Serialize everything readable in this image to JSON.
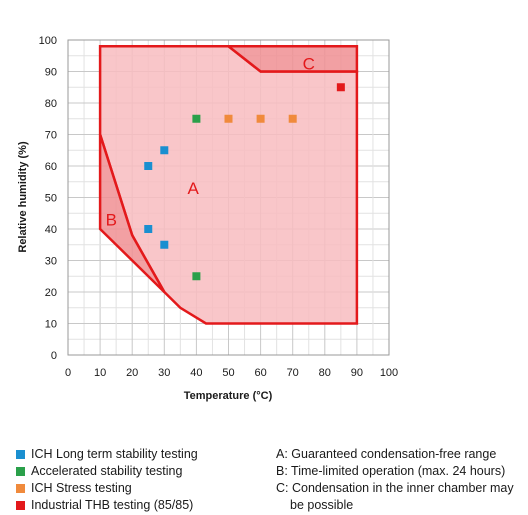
{
  "chart_data": {
    "type": "scatter",
    "xlabel": "Temperature (°C)",
    "ylabel": "Relative humidity (%)",
    "xlim": [
      0,
      100
    ],
    "ylim": [
      0,
      100
    ],
    "x_ticks": [
      0,
      10,
      20,
      30,
      40,
      50,
      60,
      70,
      80,
      90,
      100
    ],
    "y_ticks": [
      0,
      10,
      20,
      30,
      40,
      50,
      60,
      70,
      80,
      90,
      100
    ],
    "grid": true,
    "regions": [
      {
        "label": "A",
        "polygon": [
          [
            10,
            98
          ],
          [
            50,
            98
          ],
          [
            60,
            90
          ],
          [
            90,
            90
          ],
          [
            90,
            10
          ],
          [
            43,
            10
          ],
          [
            35,
            15
          ],
          [
            30,
            20
          ],
          [
            20,
            38
          ],
          [
            10,
            70
          ]
        ]
      },
      {
        "label": "B",
        "polygon": [
          [
            10,
            70
          ],
          [
            20,
            38
          ],
          [
            30,
            20
          ],
          [
            10,
            40
          ]
        ]
      },
      {
        "label": "C",
        "polygon": [
          [
            50,
            98
          ],
          [
            90,
            98
          ],
          [
            90,
            90
          ],
          [
            60,
            90
          ]
        ]
      }
    ],
    "series": [
      {
        "name": "ICH Long term stability testing",
        "color": "#1a8fd0",
        "points": [
          [
            25,
            60
          ],
          [
            30,
            65
          ],
          [
            25,
            40
          ],
          [
            30,
            35
          ]
        ]
      },
      {
        "name": "Accelerated stability testing",
        "color": "#2aa04a",
        "points": [
          [
            40,
            75
          ],
          [
            40,
            25
          ]
        ]
      },
      {
        "name": "ICH Stress testing",
        "color": "#f08a3c",
        "points": [
          [
            50,
            75
          ],
          [
            60,
            75
          ],
          [
            70,
            75
          ]
        ]
      },
      {
        "name": "Industrial THB testing (85/85)",
        "color": "#e3191b",
        "points": [
          [
            85,
            85
          ]
        ]
      }
    ]
  },
  "notes": {
    "a": "A: Guaranteed condensation-free range",
    "b": "B: Time-limited operation (max. 24 hours)",
    "c_line1": "C: Condensation in the inner chamber may",
    "c_line2": "be possible"
  },
  "colors": {
    "region_fill": "#f8bcc0",
    "region_dark": "#f08f93",
    "region_edge": "#e3191b"
  }
}
